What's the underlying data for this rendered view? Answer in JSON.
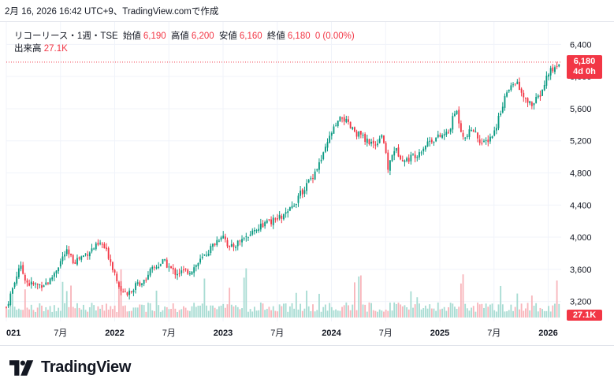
{
  "header": {
    "timestamp_text": "2月 16, 2026 16:42 UTC+9、TradingView.comで作成"
  },
  "legend": {
    "symbol_text": "リコーリース・1週・TSE",
    "open_label": "始値",
    "open_value": "6,190",
    "high_label": "高値",
    "high_value": "6,200",
    "low_label": "安値",
    "low_value": "6,160",
    "close_label": "終値",
    "close_value": "6,180",
    "change_text": "0 (0.00%)",
    "volume_label": "出来高",
    "volume_value": "27.1K"
  },
  "price_scale": {
    "last_price": "6,180",
    "countdown": "4d 0h",
    "volume_tag": "27.1K"
  },
  "brand": {
    "name": "TradingView"
  },
  "colors": {
    "up": "#089981",
    "down": "#f23645",
    "vol_up": "#a8dcd3",
    "vol_down": "#f8b5bb",
    "grid": "#f0f3fa"
  },
  "chart_data": {
    "type": "candlestick",
    "interval": "1 week",
    "ylim": [
      3000,
      6600
    ],
    "y_ticks": [
      "3,200",
      "3,600",
      "4,000",
      "4,400",
      "4,800",
      "5,200",
      "5,600",
      "6,000",
      "6,400"
    ],
    "y_tick_values": [
      3200,
      3600,
      4000,
      4400,
      4800,
      5200,
      5600,
      6000,
      6400
    ],
    "x_ticks": [
      {
        "label": "021",
        "t": 0.0,
        "bold": true
      },
      {
        "label": "7月",
        "t": 0.5,
        "bold": false
      },
      {
        "label": "2022",
        "t": 1.0,
        "bold": true
      },
      {
        "label": "7月",
        "t": 1.5,
        "bold": false
      },
      {
        "label": "2023",
        "t": 2.0,
        "bold": true
      },
      {
        "label": "7月",
        "t": 2.5,
        "bold": false
      },
      {
        "label": "2024",
        "t": 3.0,
        "bold": true
      },
      {
        "label": "7月",
        "t": 3.5,
        "bold": false
      },
      {
        "label": "2025",
        "t": 4.0,
        "bold": true
      },
      {
        "label": "7月",
        "t": 4.5,
        "bold": false
      },
      {
        "label": "2026",
        "t": 5.0,
        "bold": true
      }
    ],
    "t_range": [
      0.0,
      5.12
    ],
    "price_anchors": [
      [
        0.0,
        3130
      ],
      [
        0.03,
        3250
      ],
      [
        0.08,
        3450
      ],
      [
        0.12,
        3650
      ],
      [
        0.2,
        3420
      ],
      [
        0.3,
        3400
      ],
      [
        0.4,
        3450
      ],
      [
        0.46,
        3600
      ],
      [
        0.55,
        3820
      ],
      [
        0.62,
        3700
      ],
      [
        0.7,
        3760
      ],
      [
        0.8,
        3860
      ],
      [
        0.88,
        3920
      ],
      [
        0.95,
        3750
      ],
      [
        1.0,
        3560
      ],
      [
        1.05,
        3380
      ],
      [
        1.12,
        3320
      ],
      [
        1.25,
        3450
      ],
      [
        1.35,
        3600
      ],
      [
        1.45,
        3700
      ],
      [
        1.55,
        3560
      ],
      [
        1.7,
        3580
      ],
      [
        1.8,
        3720
      ],
      [
        1.92,
        3920
      ],
      [
        2.0,
        4050
      ],
      [
        2.06,
        3850
      ],
      [
        2.15,
        3950
      ],
      [
        2.25,
        4050
      ],
      [
        2.35,
        4150
      ],
      [
        2.5,
        4220
      ],
      [
        2.6,
        4300
      ],
      [
        2.72,
        4550
      ],
      [
        2.82,
        4750
      ],
      [
        2.92,
        5000
      ],
      [
        3.0,
        5300
      ],
      [
        3.1,
        5500
      ],
      [
        3.18,
        5350
      ],
      [
        3.28,
        5250
      ],
      [
        3.4,
        5150
      ],
      [
        3.47,
        5300
      ],
      [
        3.52,
        4850
      ],
      [
        3.58,
        5100
      ],
      [
        3.68,
        4950
      ],
      [
        3.8,
        5050
      ],
      [
        3.9,
        5200
      ],
      [
        4.0,
        5250
      ],
      [
        4.08,
        5300
      ],
      [
        4.15,
        5600
      ],
      [
        4.22,
        5200
      ],
      [
        4.3,
        5350
      ],
      [
        4.4,
        5150
      ],
      [
        4.5,
        5300
      ],
      [
        4.6,
        5750
      ],
      [
        4.7,
        5950
      ],
      [
        4.78,
        5700
      ],
      [
        4.86,
        5650
      ],
      [
        4.94,
        5800
      ],
      [
        5.0,
        6050
      ],
      [
        5.06,
        6100
      ],
      [
        5.1,
        6180
      ]
    ],
    "volume_max": 200
  }
}
